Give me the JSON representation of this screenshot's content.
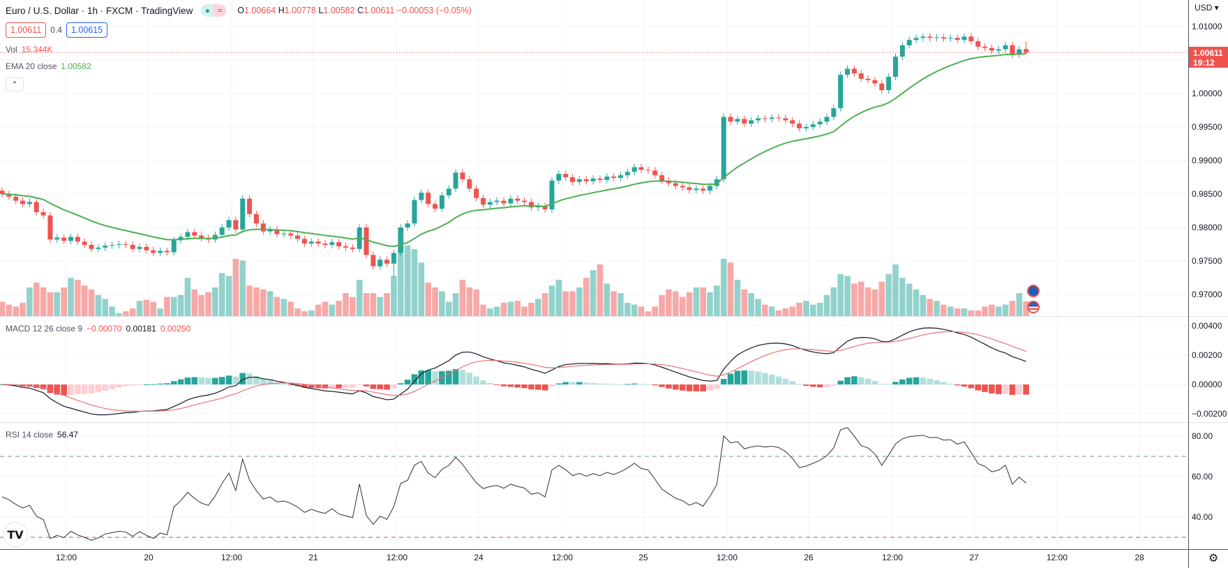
{
  "header": {
    "title": "Euro / U.S. Dollar · 1h · FXCM · TradingView",
    "status_icons": [
      "market-open-dot-icon",
      "replay-wave-icon"
    ],
    "ohlc": {
      "o_label": "O",
      "o": "1.00664",
      "h_label": "H",
      "h": "1.00778",
      "l_label": "L",
      "l": "1.00582",
      "c_label": "C",
      "c": "1.00611",
      "change": "−0.00053 (−0.05%)"
    },
    "sell_price": "1.00611",
    "spread": "0.4",
    "buy_price": "1.00615",
    "collapse_icon": "chevron-up-icon"
  },
  "legends": {
    "vol_label": "Vol",
    "vol_value": "15.344K",
    "ema_label": "EMA 20 close",
    "ema_value": "1.00582",
    "macd_label": "MACD 12 26 close 9",
    "macd_hist": "−0.00070",
    "macd_line": "0.00181",
    "macd_signal": "0.00250",
    "rsi_label": "RSI 14 close",
    "rsi_value": "56.47"
  },
  "price_axis": {
    "currency": "USD ▾",
    "last_price": "1.00611",
    "countdown": "19:12"
  },
  "colors": {
    "up": "#26a69a",
    "down": "#ef5350",
    "ema": "#4caf50",
    "macd": "#131722",
    "signal": "#e57373",
    "rsi": "#2a2e39"
  },
  "footer": {
    "logo": "TV",
    "settings_icon": "gear-icon"
  },
  "events": [
    "eu-flag-icon",
    "us-flag-icon"
  ],
  "chart_data": {
    "type": "candlestick",
    "symbol": "EURUSD",
    "interval": "1h",
    "ylim": [
      0.967,
      1.014
    ],
    "grid": true,
    "price_ticks": [
      "1.01000",
      "1.00000",
      "0.99500",
      "0.99000",
      "0.98500",
      "0.98000",
      "0.97500",
      "0.97000"
    ],
    "price_tick_values": [
      1.01,
      1.0,
      0.995,
      0.99,
      0.985,
      0.98,
      0.975,
      0.97
    ],
    "macd_ticks": [
      "0.00400",
      "0.00200",
      "0.00000",
      "−0.00200"
    ],
    "macd_tick_values": [
      0.004,
      0.002,
      0,
      -0.002
    ],
    "rsi_ticks": [
      "80.00",
      "60.00",
      "40.00"
    ],
    "rsi_tick_values": [
      80,
      60,
      40
    ],
    "rsi_bands": [
      70,
      30
    ],
    "time_labels": [
      "12:00",
      "20",
      "12:00",
      "21",
      "12:00",
      "24",
      "12:00",
      "25",
      "12:00",
      "26",
      "12:00",
      "27",
      "12:00",
      "28"
    ],
    "open": [
      0.9855,
      0.985,
      0.9846,
      0.984,
      0.9835,
      0.9838,
      0.9823,
      0.9818,
      0.9782,
      0.9785,
      0.978,
      0.9786,
      0.9779,
      0.9774,
      0.9768,
      0.977,
      0.9773,
      0.9774,
      0.9775,
      0.9774,
      0.9768,
      0.9771,
      0.9766,
      0.9762,
      0.9765,
      0.9763,
      0.9781,
      0.9786,
      0.9793,
      0.9788,
      0.9784,
      0.9782,
      0.9789,
      0.98,
      0.9811,
      0.9797,
      0.9843,
      0.982,
      0.9806,
      0.9794,
      0.9797,
      0.979,
      0.9791,
      0.9788,
      0.9783,
      0.9776,
      0.9779,
      0.9776,
      0.9774,
      0.9778,
      0.9772,
      0.977,
      0.9768,
      0.98,
      0.9759,
      0.9742,
      0.9752,
      0.9746,
      0.9762,
      0.98,
      0.9806,
      0.9841,
      0.9852,
      0.9835,
      0.9828,
      0.9848,
      0.9858,
      0.9882,
      0.9872,
      0.9858,
      0.9844,
      0.9834,
      0.9838,
      0.984,
      0.9836,
      0.9843,
      0.984,
      0.9838,
      0.983,
      0.9832,
      0.9827,
      0.987,
      0.988,
      0.9875,
      0.9868,
      0.9872,
      0.9869,
      0.9873,
      0.9871,
      0.9876,
      0.9874,
      0.9878,
      0.9883,
      0.989,
      0.9886,
      0.9885,
      0.9878,
      0.987,
      0.9866,
      0.9862,
      0.986,
      0.9856,
      0.9858,
      0.9855,
      0.9862,
      0.9872,
      0.9965,
      0.9958,
      0.9962,
      0.9955,
      0.996,
      0.9963,
      0.9962,
      0.9964,
      0.9963,
      0.996,
      0.9955,
      0.9948,
      0.995,
      0.9954,
      0.9958,
      0.9965,
      0.9978,
      1.0028,
      1.0037,
      1.003,
      1.0022,
      1.002,
      1.0015,
      1.0005,
      1.0025,
      1.0055,
      1.0072,
      1.008,
      1.0083,
      1.0085,
      1.0083,
      1.0084,
      1.0082,
      1.0083,
      1.008,
      1.0085,
      1.0078,
      1.007,
      1.0068,
      1.0064,
      1.0066,
      1.0072,
      1.0058,
      1.00664
    ],
    "high": [
      0.986,
      0.9855,
      0.9851,
      0.9845,
      0.9843,
      0.9843,
      0.9828,
      0.9823,
      0.979,
      0.979,
      0.9791,
      0.9791,
      0.9784,
      0.9779,
      0.9775,
      0.9778,
      0.9779,
      0.978,
      0.978,
      0.9779,
      0.9776,
      0.9776,
      0.9771,
      0.977,
      0.977,
      0.9786,
      0.9791,
      0.9798,
      0.9798,
      0.9793,
      0.9789,
      0.9794,
      0.9805,
      0.9816,
      0.9816,
      0.9848,
      0.9848,
      0.9825,
      0.9811,
      0.9802,
      0.9802,
      0.9796,
      0.9796,
      0.9793,
      0.9788,
      0.9784,
      0.9784,
      0.9781,
      0.9783,
      0.9783,
      0.9777,
      0.9775,
      0.9805,
      0.9805,
      0.9764,
      0.9757,
      0.9757,
      0.9767,
      0.9805,
      0.9811,
      0.9846,
      0.9857,
      0.9857,
      0.984,
      0.9853,
      0.9863,
      0.9887,
      0.9887,
      0.9877,
      0.9863,
      0.9849,
      0.9843,
      0.9845,
      0.9845,
      0.9848,
      0.9848,
      0.9845,
      0.9843,
      0.9837,
      0.9837,
      0.9875,
      0.9885,
      0.9885,
      0.988,
      0.9877,
      0.9877,
      0.9878,
      0.9878,
      0.9881,
      0.9881,
      0.9883,
      0.9888,
      0.9895,
      0.9895,
      0.9891,
      0.989,
      0.9883,
      0.9875,
      0.9871,
      0.9867,
      0.9865,
      0.9863,
      0.9863,
      0.9867,
      0.9877,
      0.997,
      0.997,
      0.9967,
      0.9967,
      0.9965,
      0.9968,
      0.9968,
      0.9969,
      0.9969,
      0.9968,
      0.9965,
      0.996,
      0.9955,
      0.9959,
      0.9963,
      0.997,
      0.9983,
      1.0033,
      1.0042,
      1.0042,
      1.0035,
      1.0027,
      1.0025,
      1.002,
      1.003,
      1.006,
      1.0077,
      1.0085,
      1.0088,
      1.009,
      1.009,
      1.0089,
      1.0089,
      1.0088,
      1.0088,
      1.009,
      1.009,
      1.0083,
      1.0075,
      1.0073,
      1.0071,
      1.0077,
      1.0077,
      1.0071,
      1.00778
    ],
    "low": [
      0.9845,
      0.9841,
      0.9835,
      0.983,
      0.983,
      0.9818,
      0.9813,
      0.9777,
      0.9777,
      0.9775,
      0.9775,
      0.9774,
      0.9769,
      0.9763,
      0.9763,
      0.9765,
      0.9768,
      0.9769,
      0.9769,
      0.9763,
      0.9763,
      0.9761,
      0.9757,
      0.9757,
      0.9758,
      0.9758,
      0.9776,
      0.9781,
      0.9783,
      0.9779,
      0.9777,
      0.9777,
      0.9784,
      0.9795,
      0.9792,
      0.9792,
      0.9815,
      0.9801,
      0.9789,
      0.9789,
      0.9785,
      0.9785,
      0.9783,
      0.9778,
      0.9771,
      0.9771,
      0.9771,
      0.9769,
      0.9769,
      0.9767,
      0.9765,
      0.9763,
      0.9763,
      0.9754,
      0.9737,
      0.9737,
      0.9741,
      0.9725,
      0.9757,
      0.9795,
      0.9801,
      0.9836,
      0.983,
      0.9823,
      0.9823,
      0.9843,
      0.9853,
      0.9867,
      0.9853,
      0.9839,
      0.9829,
      0.9829,
      0.9833,
      0.9831,
      0.9831,
      0.9835,
      0.9833,
      0.9825,
      0.9825,
      0.9822,
      0.9822,
      0.9865,
      0.987,
      0.9863,
      0.9863,
      0.9864,
      0.9864,
      0.9866,
      0.9866,
      0.9869,
      0.9869,
      0.9873,
      0.9878,
      0.9881,
      0.988,
      0.9873,
      0.9865,
      0.9861,
      0.9857,
      0.9855,
      0.9851,
      0.9851,
      0.985,
      0.985,
      0.9857,
      0.9867,
      0.9953,
      0.9953,
      0.995,
      0.995,
      0.9955,
      0.9957,
      0.9957,
      0.9958,
      0.9955,
      0.995,
      0.9943,
      0.9943,
      0.9945,
      0.9949,
      0.9953,
      0.996,
      0.9973,
      1.0023,
      1.0025,
      1.0017,
      1.0015,
      1.001,
      1.0,
      1.0,
      1.002,
      1.005,
      1.0067,
      1.0075,
      1.0078,
      1.0078,
      1.0078,
      1.0077,
      1.0077,
      1.0075,
      1.0075,
      1.0073,
      1.0065,
      1.0063,
      1.0059,
      1.0059,
      1.0061,
      1.0053,
      1.0053,
      1.00582
    ],
    "close": [
      0.985,
      0.9846,
      0.984,
      0.9835,
      0.9838,
      0.9823,
      0.9818,
      0.9782,
      0.9785,
      0.978,
      0.9786,
      0.9779,
      0.9774,
      0.9768,
      0.977,
      0.9773,
      0.9774,
      0.9775,
      0.9774,
      0.9768,
      0.9771,
      0.9766,
      0.9762,
      0.9765,
      0.9763,
      0.9781,
      0.9786,
      0.9793,
      0.9788,
      0.9784,
      0.9782,
      0.9789,
      0.98,
      0.9811,
      0.9797,
      0.9843,
      0.982,
      0.9806,
      0.9794,
      0.9797,
      0.979,
      0.9791,
      0.9788,
      0.9783,
      0.9776,
      0.9779,
      0.9776,
      0.9774,
      0.9778,
      0.9772,
      0.977,
      0.9768,
      0.98,
      0.9759,
      0.9742,
      0.9752,
      0.9746,
      0.9762,
      0.98,
      0.9806,
      0.9841,
      0.9852,
      0.9835,
      0.9828,
      0.9848,
      0.9858,
      0.9882,
      0.9872,
      0.9858,
      0.9844,
      0.9834,
      0.9838,
      0.984,
      0.9836,
      0.9843,
      0.984,
      0.9838,
      0.983,
      0.9832,
      0.9827,
      0.987,
      0.988,
      0.9875,
      0.9868,
      0.9872,
      0.9869,
      0.9873,
      0.9871,
      0.9876,
      0.9874,
      0.9878,
      0.9883,
      0.989,
      0.9886,
      0.9885,
      0.9878,
      0.987,
      0.9866,
      0.9862,
      0.986,
      0.9856,
      0.9858,
      0.9855,
      0.9862,
      0.9872,
      0.9965,
      0.9958,
      0.9962,
      0.9955,
      0.996,
      0.9963,
      0.9962,
      0.9964,
      0.9963,
      0.996,
      0.9955,
      0.9948,
      0.995,
      0.9954,
      0.9958,
      0.9965,
      0.9978,
      1.0028,
      1.0037,
      1.003,
      1.0022,
      1.002,
      1.0015,
      1.0005,
      1.0025,
      1.0055,
      1.0072,
      1.008,
      1.0083,
      1.0085,
      1.0083,
      1.0084,
      1.0082,
      1.0083,
      1.008,
      1.0085,
      1.0078,
      1.007,
      1.0068,
      1.0064,
      1.0066,
      1.0072,
      1.0058,
      1.0066,
      1.00611
    ],
    "volume_k": [
      15,
      12,
      10,
      14,
      30,
      35,
      30,
      25,
      25,
      30,
      40,
      38,
      32,
      28,
      22,
      18,
      10,
      3,
      5,
      8,
      16,
      17,
      15,
      8,
      20,
      20,
      22,
      40,
      28,
      22,
      25,
      30,
      45,
      42,
      60,
      58,
      32,
      30,
      28,
      26,
      20,
      18,
      15,
      8,
      5,
      6,
      12,
      15,
      12,
      16,
      24,
      20,
      38,
      24,
      24,
      20,
      24,
      42,
      92,
      74,
      70,
      56,
      35,
      30,
      26,
      15,
      24,
      38,
      30,
      28,
      12,
      8,
      10,
      14,
      15,
      16,
      10,
      14,
      18,
      24,
      32,
      38,
      26,
      26,
      30,
      40,
      48,
      54,
      34,
      26,
      24,
      14,
      12,
      10,
      5,
      10,
      22,
      28,
      26,
      20,
      25,
      30,
      30,
      25,
      32,
      60,
      56,
      38,
      28,
      24,
      18,
      12,
      10,
      6,
      8,
      10,
      14,
      16,
      12,
      14,
      22,
      30,
      44,
      42,
      34,
      36,
      30,
      28,
      36,
      44,
      54,
      40,
      34,
      28,
      22,
      18,
      16,
      12,
      10,
      8,
      8,
      6,
      6,
      10,
      12,
      10,
      12,
      16,
      24,
      15.344
    ],
    "indicators": [
      "Vol",
      "EMA 20 close",
      "MACD 12 26 close 9",
      "RSI 14 close"
    ]
  }
}
